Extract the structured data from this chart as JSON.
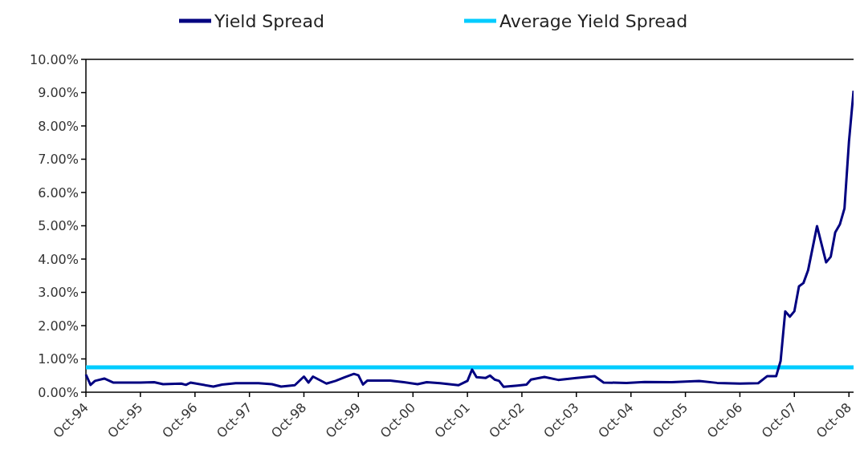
{
  "chart_data": {
    "type": "line",
    "legend": "top",
    "grid": false,
    "xlim": [
      "1994-10",
      "2008-11"
    ],
    "xticks": [
      {
        "value": "1994-10",
        "label": "Oct-94"
      },
      {
        "value": "1995-10",
        "label": "Oct-95"
      },
      {
        "value": "1996-10",
        "label": "Oct-96"
      },
      {
        "value": "1997-10",
        "label": "Oct-97"
      },
      {
        "value": "1998-10",
        "label": "Oct-98"
      },
      {
        "value": "1999-10",
        "label": "Oct-99"
      },
      {
        "value": "2000-10",
        "label": "Oct-00"
      },
      {
        "value": "2001-10",
        "label": "Oct-01"
      },
      {
        "value": "2002-10",
        "label": "Oct-02"
      },
      {
        "value": "2003-10",
        "label": "Oct-03"
      },
      {
        "value": "2004-10",
        "label": "Oct-04"
      },
      {
        "value": "2005-10",
        "label": "Oct-05"
      },
      {
        "value": "2006-10",
        "label": "Oct-06"
      },
      {
        "value": "2007-10",
        "label": "Oct-07"
      },
      {
        "value": "2008-10",
        "label": "Oct-08"
      }
    ],
    "ylim": [
      0,
      10
    ],
    "yticks": [
      {
        "value": 0,
        "label": "0.00%"
      },
      {
        "value": 1,
        "label": "1.00%"
      },
      {
        "value": 2,
        "label": "2.00%"
      },
      {
        "value": 3,
        "label": "3.00%"
      },
      {
        "value": 4,
        "label": "4.00%"
      },
      {
        "value": 5,
        "label": "5.00%"
      },
      {
        "value": 6,
        "label": "6.00%"
      },
      {
        "value": 7,
        "label": "7.00%"
      },
      {
        "value": 8,
        "label": "8.00%"
      },
      {
        "value": 9,
        "label": "9.00%"
      },
      {
        "value": 10,
        "label": "10.00%"
      }
    ],
    "series": [
      {
        "name": "Yield Spread",
        "color": "#000080",
        "x": [
          "1994-10",
          "1994-11",
          "1994-12",
          "1995-02",
          "1995-04",
          "1995-10",
          "1996-01",
          "1996-03",
          "1996-07",
          "1996-08",
          "1996-09",
          "1997-02",
          "1997-04",
          "1997-07",
          "1997-12",
          "1998-03",
          "1998-05",
          "1998-08",
          "1998-10",
          "1998-11",
          "1998-12",
          "1999-03",
          "1999-05",
          "1999-07",
          "1999-09",
          "1999-10",
          "1999-11",
          "1999-12",
          "2000-05",
          "2000-08",
          "2000-11",
          "2001-01",
          "2001-04",
          "2001-06",
          "2001-08",
          "2001-10",
          "2001-11",
          "2001-12",
          "2002-02",
          "2002-03",
          "2002-04",
          "2002-05",
          "2002-06",
          "2002-09",
          "2002-11",
          "2002-12",
          "2003-03",
          "2003-06",
          "2003-10",
          "2004-02",
          "2004-04",
          "2004-09",
          "2005-01",
          "2005-07",
          "2006-01",
          "2006-05",
          "2006-10",
          "2007-02",
          "2007-04",
          "2007-06",
          "2007-07",
          "2007-08",
          "2007-09",
          "2007-10",
          "2007-11",
          "2007-12",
          "2008-01",
          "2008-03",
          "2008-05",
          "2008-06",
          "2008-07",
          "2008-08",
          "2008-09",
          "2008-10",
          "2008-11"
        ],
        "values": [
          0.53,
          0.22,
          0.34,
          0.41,
          0.29,
          0.29,
          0.3,
          0.24,
          0.26,
          0.22,
          0.29,
          0.17,
          0.23,
          0.27,
          0.27,
          0.24,
          0.17,
          0.21,
          0.47,
          0.29,
          0.47,
          0.26,
          0.34,
          0.45,
          0.55,
          0.51,
          0.23,
          0.35,
          0.35,
          0.3,
          0.24,
          0.3,
          0.27,
          0.24,
          0.21,
          0.34,
          0.68,
          0.45,
          0.43,
          0.5,
          0.38,
          0.34,
          0.16,
          0.2,
          0.23,
          0.38,
          0.46,
          0.37,
          0.43,
          0.48,
          0.29,
          0.28,
          0.31,
          0.3,
          0.34,
          0.28,
          0.26,
          0.27,
          0.48,
          0.48,
          0.94,
          2.43,
          2.27,
          2.43,
          3.18,
          3.28,
          3.66,
          4.99,
          3.9,
          4.07,
          4.8,
          5.04,
          5.52,
          7.52,
          9.06
        ]
      },
      {
        "name": "Average Yield Spread",
        "color": "#00ccff",
        "x": [
          "1994-10",
          "2008-11"
        ],
        "values": [
          0.75,
          0.75
        ]
      }
    ]
  }
}
